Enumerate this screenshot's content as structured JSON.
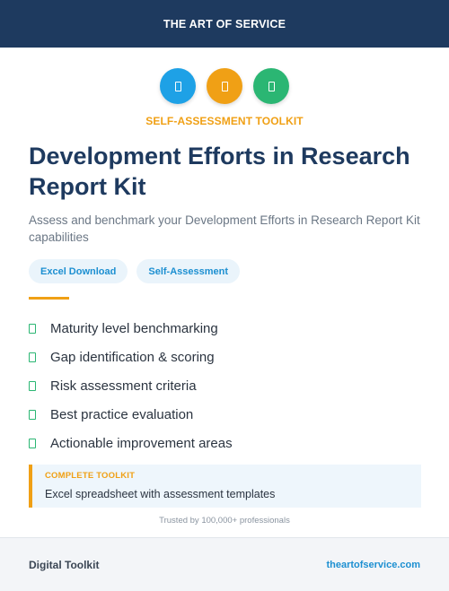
{
  "header": {
    "brand": "THE ART OF SERVICE",
    "color": "#1e3a5f"
  },
  "icons": [
    {
      "name": "document-icon",
      "color": "#1ea1e6"
    },
    {
      "name": "document-icon",
      "color": "#f0a015"
    },
    {
      "name": "document-icon",
      "color": "#2bb673"
    }
  ],
  "eyebrow": "SELF-ASSESSMENT TOOLKIT",
  "title": "Development Efforts in Research Report Kit",
  "subtitle": "Assess and benchmark your Development Efforts in Research Report Kit capabilities",
  "tags": [
    "Excel Download",
    "Self-Assessment"
  ],
  "features": [
    "Maturity level benchmarking",
    "Gap identification & scoring",
    "Risk assessment criteria",
    "Best practice evaluation",
    "Actionable improvement areas"
  ],
  "callout": {
    "label": "COMPLETE TOOLKIT",
    "description": "Excel spreadsheet with assessment templates"
  },
  "trusted": "Trusted by 100,000+ professionals",
  "footer": {
    "left": "Digital Toolkit",
    "right": "theartofservice.com"
  }
}
